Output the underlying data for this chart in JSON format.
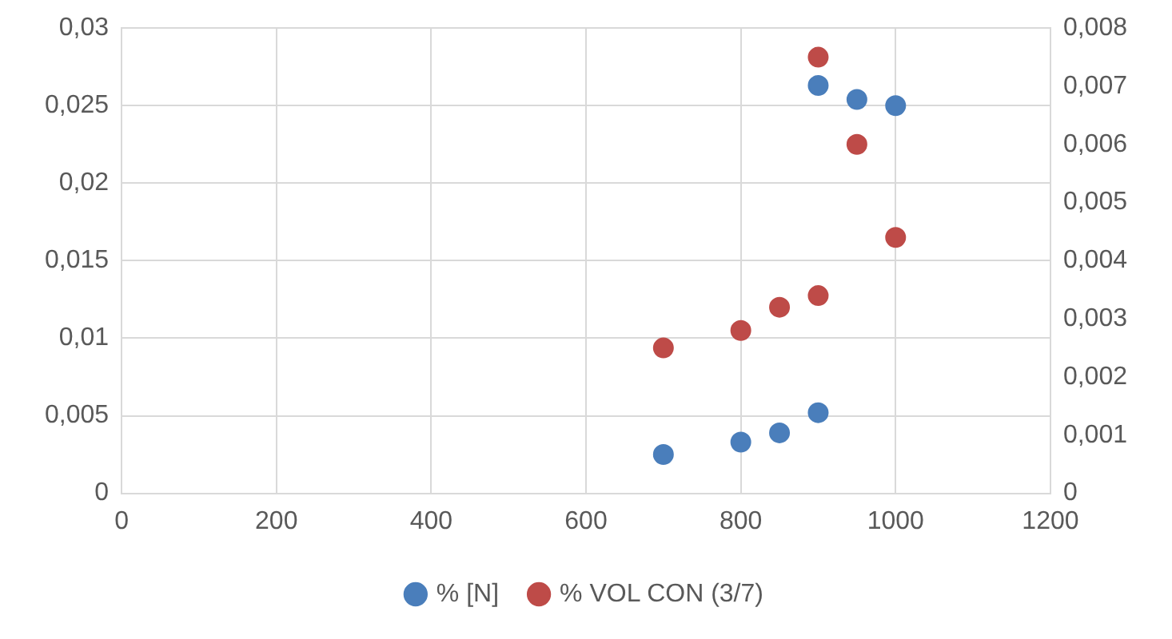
{
  "chart_data": {
    "type": "scatter",
    "marker": "circle",
    "grid": true,
    "legend": "bottom",
    "xlim": [
      0,
      1200
    ],
    "xticks": [
      0,
      200,
      400,
      600,
      800,
      1000,
      1200
    ],
    "ylim": [
      0,
      0.03
    ],
    "yticks": [
      0,
      {
        "value": 0.005,
        "label": "0,005"
      },
      {
        "value": 0.01,
        "label": "0,01"
      },
      {
        "value": 0.015,
        "label": "0,015"
      },
      {
        "value": 0.02,
        "label": "0,02"
      },
      {
        "value": 0.025,
        "label": "0,025"
      },
      {
        "value": 0.03,
        "label": "0,03"
      }
    ],
    "y2lim": [
      0,
      0.008
    ],
    "y2ticks": [
      0,
      {
        "value": 0.001,
        "label": "0,001"
      },
      {
        "value": 0.002,
        "label": "0,002"
      },
      {
        "value": 0.003,
        "label": "0,003"
      },
      {
        "value": 0.004,
        "label": "0,004"
      },
      {
        "value": 0.005,
        "label": "0,005"
      },
      {
        "value": 0.006,
        "label": "0,006"
      },
      {
        "value": 0.007,
        "label": "0,007"
      },
      {
        "value": 0.008,
        "label": "0,008"
      }
    ],
    "series": [
      {
        "name": "% [N]",
        "color": "#4a7ebb",
        "x": [
          700,
          800,
          850,
          900,
          900,
          950,
          1000
        ],
        "values": [
          0.0025,
          0.0033,
          0.0039,
          0.0052,
          0.0263,
          0.0254,
          0.025
        ]
      },
      {
        "name": "% VOL CON (3/7)",
        "color": "#be4b48",
        "axis": "y2",
        "x": [
          700,
          800,
          850,
          900,
          900,
          950,
          1000
        ],
        "values": [
          0.0025,
          0.0028,
          0.0032,
          0.0034,
          0.0075,
          0.006,
          0.0044
        ]
      }
    ]
  }
}
